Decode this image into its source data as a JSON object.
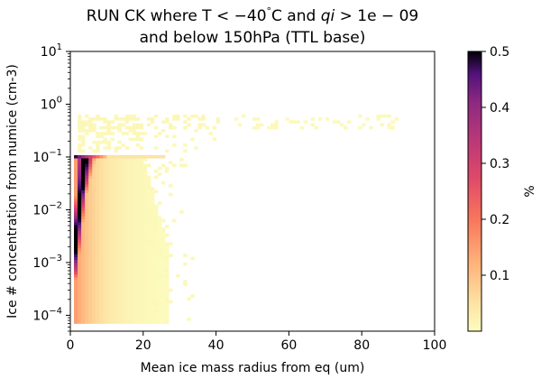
{
  "chart_data": {
    "type": "heatmap",
    "title": {
      "line1_prefix": "RUN CK where T",
      "line1_cond1": " < −40",
      "line1_deg": "°",
      "line1_c": "C and ",
      "line1_qi": "qi",
      "line1_cond2": " > 1e − 09",
      "line2": "and below 150hPa (TTL base)"
    },
    "xlabel": "Mean ice mass radius from eq (um)",
    "ylabel": "Ice # concentration from numice (cm-3)",
    "xlim": [
      0,
      100
    ],
    "ylim": [
      5e-05,
      10
    ],
    "yscale": "log",
    "x_ticks": [
      {
        "value": 0,
        "label": "0"
      },
      {
        "value": 20,
        "label": "20"
      },
      {
        "value": 40,
        "label": "40"
      },
      {
        "value": 60,
        "label": "60"
      },
      {
        "value": 80,
        "label": "80"
      },
      {
        "value": 100,
        "label": "100"
      }
    ],
    "y_ticks": [
      {
        "exp": -4,
        "base": "10",
        "power": "−4"
      },
      {
        "exp": -3,
        "base": "10",
        "power": "−3"
      },
      {
        "exp": -2,
        "base": "10",
        "power": "−2"
      },
      {
        "exp": -1,
        "base": "10",
        "power": "−1"
      },
      {
        "exp": 0,
        "base": "10",
        "power": "0"
      },
      {
        "exp": 1,
        "base": "10",
        "power": "1"
      }
    ],
    "colorbar": {
      "label": "%",
      "min": 0.0,
      "max": 0.5,
      "colormap": "magma_r",
      "ticks": [
        {
          "value": 0.1,
          "label": "0.1"
        },
        {
          "value": 0.2,
          "label": "0.2"
        },
        {
          "value": 0.3,
          "label": "0.3"
        },
        {
          "value": 0.4,
          "label": "0.4"
        },
        {
          "value": 0.5,
          "label": "0.5"
        }
      ]
    },
    "grid": false,
    "distribution_notes": {
      "max_y_cutoff": 0.1,
      "peak_x_range": [
        1,
        8
      ],
      "x_extent_max": 91
    }
  }
}
